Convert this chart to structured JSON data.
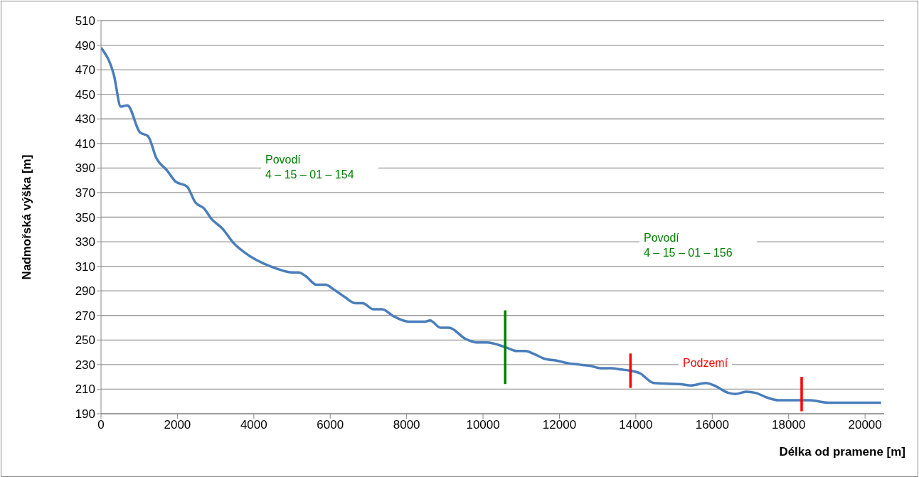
{
  "chart_data": {
    "type": "line",
    "xlabel": "Délka od pramene [m]",
    "ylabel": "Nadmořská výška [m]",
    "xlim": [
      0,
      20500
    ],
    "xticks": [
      0,
      2000,
      4000,
      6000,
      8000,
      10000,
      12000,
      14000,
      16000,
      18000,
      20000
    ],
    "ylim": [
      190,
      510
    ],
    "yticks": [
      190,
      210,
      230,
      250,
      270,
      290,
      310,
      330,
      350,
      370,
      390,
      410,
      430,
      450,
      470,
      490,
      510
    ],
    "grid": "y",
    "marker": "none",
    "line_style": "solid",
    "series": [
      {
        "color": "#4a7ebb",
        "x": [
          0,
          335,
          520,
          690,
          1020,
          1230,
          1450,
          1730,
          1950,
          2250,
          2470,
          2700,
          2880,
          3200,
          3440,
          3770,
          4430,
          4610,
          5000,
          5170,
          5360,
          5640,
          5880,
          6100,
          6380,
          6660,
          6850,
          7130,
          7350,
          7680,
          8050,
          8480,
          8610,
          8890,
          9110,
          9540,
          9820,
          10100,
          10600,
          10880,
          11120,
          11310,
          11590,
          11960,
          12240,
          12520,
          12800,
          13080,
          13350,
          13630,
          13860,
          14010,
          14100,
          14470,
          15180,
          15440,
          15830,
          16050,
          16420,
          16610,
          16890,
          17130,
          17450,
          17730,
          18000,
          18560,
          19030,
          20420
        ],
        "values": [
          488,
          466,
          440,
          441,
          419,
          416,
          398,
          388,
          379,
          375,
          362,
          357,
          349,
          340,
          330,
          321,
          310,
          308,
          305,
          305,
          302,
          295,
          295,
          291,
          285,
          280,
          280,
          275,
          275,
          269,
          265,
          265,
          266,
          260,
          260,
          251,
          248,
          248,
          244,
          241,
          241,
          239,
          235,
          233,
          231,
          230,
          229,
          227,
          227,
          226,
          225,
          224,
          223,
          215,
          214,
          213,
          215,
          213,
          207,
          206,
          208,
          207,
          203,
          201,
          201,
          201,
          199,
          199
        ]
      }
    ],
    "ref_lines": [
      {
        "axis": "x",
        "value": 10580,
        "color": "#008000"
      },
      {
        "axis": "x",
        "value": 13860,
        "color": "#ff0000"
      },
      {
        "axis": "x",
        "value": 18340,
        "color": "#ff0000"
      }
    ],
    "annotations": [
      "Povodí\n4 – 15 – 01 – 154",
      "Povodí\n4 – 15 – 01 – 156",
      "Podzemí"
    ]
  }
}
